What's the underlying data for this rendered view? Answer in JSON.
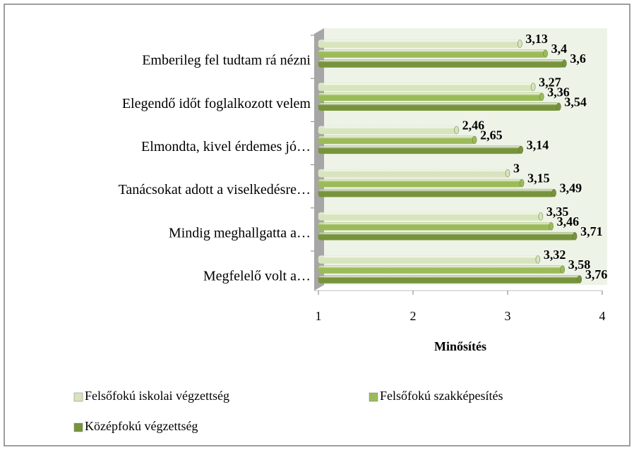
{
  "chart_data": {
    "type": "bar",
    "orientation": "horizontal",
    "categories": [
      "Emberileg fel tudtam rá nézni",
      "Elegendő időt foglalkozott velem",
      "Elmondta, kivel érdemes jó…",
      "Tanácsokat adott a viselkedésre…",
      "Mindig meghallgatta a…",
      "Megfelelő volt a…"
    ],
    "series": [
      {
        "name": "Felsőfokú iskolai végzettség",
        "color": "#d7e4bd",
        "values": [
          3.13,
          3.27,
          2.46,
          3,
          3.35,
          3.32
        ],
        "value_labels": [
          "3,13",
          "3,27",
          "2,46",
          "3",
          "3,35",
          "3,32"
        ]
      },
      {
        "name": "Felsőfokú szakképesítés",
        "color": "#9bbb59",
        "values": [
          3.4,
          3.36,
          2.65,
          3.15,
          3.46,
          3.58
        ],
        "value_labels": [
          "3,4",
          "3,36",
          "2,65",
          "3,15",
          "3,46",
          "3,58"
        ]
      },
      {
        "name": "Középfokú végzettség",
        "color": "#77933c",
        "values": [
          3.6,
          3.54,
          3.14,
          3.49,
          3.71,
          3.76
        ],
        "value_labels": [
          "3,6",
          "3,54",
          "3,14",
          "3,49",
          "3,71",
          "3,76"
        ]
      }
    ],
    "xlabel": "Minősítés",
    "xlim": [
      1,
      4
    ],
    "xticks": [
      1,
      2,
      3,
      4
    ],
    "grid": false,
    "legend": "bottom"
  }
}
